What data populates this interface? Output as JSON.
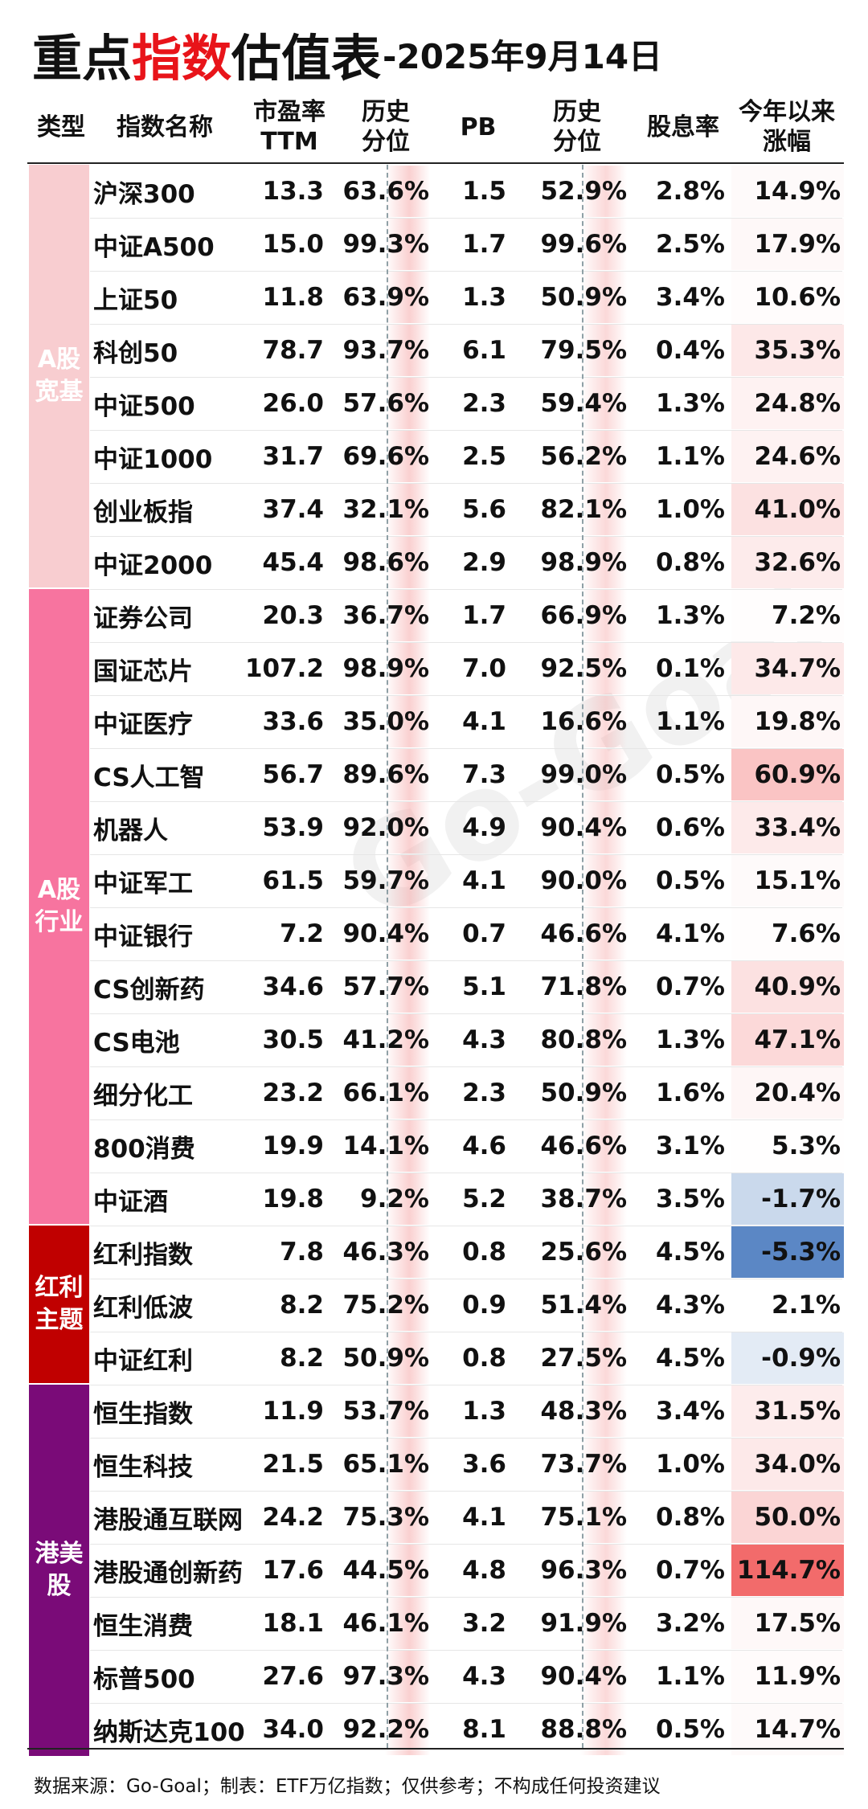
{
  "title": {
    "part1": "重点",
    "part2": "指数",
    "part3": "估值表",
    "part4": "-2025年9月14日"
  },
  "header": {
    "type": "类型",
    "name": "指数名称",
    "pe_l1": "市盈率",
    "pe_l2": "TTM",
    "pe_pct_l1": "历史",
    "pe_pct_l2": "分位",
    "pb": "PB",
    "pb_pct_l1": "历史",
    "pb_pct_l2": "分位",
    "div": "股息率",
    "ytd_l1": "今年以来",
    "ytd_l2": "涨幅"
  },
  "categories": [
    {
      "label_l1": "A股",
      "label_l2": "宽基",
      "color": "#f8cdd0",
      "rows": 8
    },
    {
      "label_l1": "A股",
      "label_l2": "行业",
      "color": "#f7749f",
      "rows": 12
    },
    {
      "label_l1": "红利",
      "label_l2": "主题",
      "color": "#c00000",
      "rows": 3
    },
    {
      "label_l1": "港美",
      "label_l2": "股",
      "color": "#7a0b78",
      "rows": 7
    }
  ],
  "rows": [
    {
      "name": "沪深300",
      "pe": "13.3",
      "pe_pct": "63.6%",
      "pb": "1.5",
      "pb_pct": "52.9%",
      "div": "2.8%",
      "ytd": "14.9%",
      "ytd_value": 14.9
    },
    {
      "name": "中证A500",
      "pe": "15.0",
      "pe_pct": "99.3%",
      "pb": "1.7",
      "pb_pct": "99.6%",
      "div": "2.5%",
      "ytd": "17.9%",
      "ytd_value": 17.9
    },
    {
      "name": "上证50",
      "pe": "11.8",
      "pe_pct": "63.9%",
      "pb": "1.3",
      "pb_pct": "50.9%",
      "div": "3.4%",
      "ytd": "10.6%",
      "ytd_value": 10.6
    },
    {
      "name": "科创50",
      "pe": "78.7",
      "pe_pct": "93.7%",
      "pb": "6.1",
      "pb_pct": "79.5%",
      "div": "0.4%",
      "ytd": "35.3%",
      "ytd_value": 35.3
    },
    {
      "name": "中证500",
      "pe": "26.0",
      "pe_pct": "57.6%",
      "pb": "2.3",
      "pb_pct": "59.4%",
      "div": "1.3%",
      "ytd": "24.8%",
      "ytd_value": 24.8
    },
    {
      "name": "中证1000",
      "pe": "31.7",
      "pe_pct": "69.6%",
      "pb": "2.5",
      "pb_pct": "56.2%",
      "div": "1.1%",
      "ytd": "24.6%",
      "ytd_value": 24.6
    },
    {
      "name": "创业板指",
      "pe": "37.4",
      "pe_pct": "32.1%",
      "pb": "5.6",
      "pb_pct": "82.1%",
      "div": "1.0%",
      "ytd": "41.0%",
      "ytd_value": 41.0
    },
    {
      "name": "中证2000",
      "pe": "45.4",
      "pe_pct": "98.6%",
      "pb": "2.9",
      "pb_pct": "98.9%",
      "div": "0.8%",
      "ytd": "32.6%",
      "ytd_value": 32.6
    },
    {
      "name": "证券公司",
      "pe": "20.3",
      "pe_pct": "36.7%",
      "pb": "1.7",
      "pb_pct": "66.9%",
      "div": "1.3%",
      "ytd": "7.2%",
      "ytd_value": 7.2
    },
    {
      "name": "国证芯片",
      "pe": "107.2",
      "pe_pct": "98.9%",
      "pb": "7.0",
      "pb_pct": "92.5%",
      "div": "0.1%",
      "ytd": "34.7%",
      "ytd_value": 34.7
    },
    {
      "name": "中证医疗",
      "pe": "33.6",
      "pe_pct": "35.0%",
      "pb": "4.1",
      "pb_pct": "16.6%",
      "div": "1.1%",
      "ytd": "19.8%",
      "ytd_value": 19.8
    },
    {
      "name": "CS人工智",
      "pe": "56.7",
      "pe_pct": "89.6%",
      "pb": "7.3",
      "pb_pct": "99.0%",
      "div": "0.5%",
      "ytd": "60.9%",
      "ytd_value": 60.9
    },
    {
      "name": "机器人",
      "pe": "53.9",
      "pe_pct": "92.0%",
      "pb": "4.9",
      "pb_pct": "90.4%",
      "div": "0.6%",
      "ytd": "33.4%",
      "ytd_value": 33.4
    },
    {
      "name": "中证军工",
      "pe": "61.5",
      "pe_pct": "59.7%",
      "pb": "4.1",
      "pb_pct": "90.0%",
      "div": "0.5%",
      "ytd": "15.1%",
      "ytd_value": 15.1
    },
    {
      "name": "中证银行",
      "pe": "7.2",
      "pe_pct": "90.4%",
      "pb": "0.7",
      "pb_pct": "46.6%",
      "div": "4.1%",
      "ytd": "7.6%",
      "ytd_value": 7.6
    },
    {
      "name": "CS创新药",
      "pe": "34.6",
      "pe_pct": "57.7%",
      "pb": "5.1",
      "pb_pct": "71.8%",
      "div": "0.7%",
      "ytd": "40.9%",
      "ytd_value": 40.9
    },
    {
      "name": "CS电池",
      "pe": "30.5",
      "pe_pct": "41.2%",
      "pb": "4.3",
      "pb_pct": "80.8%",
      "div": "1.3%",
      "ytd": "47.1%",
      "ytd_value": 47.1
    },
    {
      "name": "细分化工",
      "pe": "23.2",
      "pe_pct": "66.1%",
      "pb": "2.3",
      "pb_pct": "50.9%",
      "div": "1.6%",
      "ytd": "20.4%",
      "ytd_value": 20.4
    },
    {
      "name": "800消费",
      "pe": "19.9",
      "pe_pct": "14.1%",
      "pb": "4.6",
      "pb_pct": "46.6%",
      "div": "3.1%",
      "ytd": "5.3%",
      "ytd_value": 5.3
    },
    {
      "name": "中证酒",
      "pe": "19.8",
      "pe_pct": "9.2%",
      "pb": "5.2",
      "pb_pct": "38.7%",
      "div": "3.5%",
      "ytd": "-1.7%",
      "ytd_value": -1.7
    },
    {
      "name": "红利指数",
      "pe": "7.8",
      "pe_pct": "46.3%",
      "pb": "0.8",
      "pb_pct": "25.6%",
      "div": "4.5%",
      "ytd": "-5.3%",
      "ytd_value": -5.3
    },
    {
      "name": "红利低波",
      "pe": "8.2",
      "pe_pct": "75.2%",
      "pb": "0.9",
      "pb_pct": "51.4%",
      "div": "4.3%",
      "ytd": "2.1%",
      "ytd_value": 2.1
    },
    {
      "name": "中证红利",
      "pe": "8.2",
      "pe_pct": "50.9%",
      "pb": "0.8",
      "pb_pct": "27.5%",
      "div": "4.5%",
      "ytd": "-0.9%",
      "ytd_value": -0.9
    },
    {
      "name": "恒生指数",
      "pe": "11.9",
      "pe_pct": "53.7%",
      "pb": "1.3",
      "pb_pct": "48.3%",
      "div": "3.4%",
      "ytd": "31.5%",
      "ytd_value": 31.5
    },
    {
      "name": "恒生科技",
      "pe": "21.5",
      "pe_pct": "65.1%",
      "pb": "3.6",
      "pb_pct": "73.7%",
      "div": "1.0%",
      "ytd": "34.0%",
      "ytd_value": 34.0
    },
    {
      "name": "港股通互联网",
      "pe": "24.2",
      "pe_pct": "75.3%",
      "pb": "4.1",
      "pb_pct": "75.1%",
      "div": "0.8%",
      "ytd": "50.0%",
      "ytd_value": 50.0
    },
    {
      "name": "港股通创新药",
      "pe": "17.6",
      "pe_pct": "44.5%",
      "pb": "4.8",
      "pb_pct": "96.3%",
      "div": "0.7%",
      "ytd": "114.7%",
      "ytd_value": 114.7
    },
    {
      "name": "恒生消费",
      "pe": "18.1",
      "pe_pct": "46.1%",
      "pb": "3.2",
      "pb_pct": "91.9%",
      "div": "3.2%",
      "ytd": "17.5%",
      "ytd_value": 17.5
    },
    {
      "name": "标普500",
      "pe": "27.6",
      "pe_pct": "97.3%",
      "pb": "4.3",
      "pb_pct": "90.4%",
      "div": "1.1%",
      "ytd": "11.9%",
      "ytd_value": 11.9
    },
    {
      "name": "纳斯达克100",
      "pe": "34.0",
      "pe_pct": "92.2%",
      "pb": "8.1",
      "pb_pct": "88.8%",
      "div": "0.5%",
      "ytd": "14.7%",
      "ytd_value": 14.7
    }
  ],
  "colors": {
    "heat_pos_max": "#f26b6b",
    "heat_neg_max": "#5b87c5",
    "title_accent": "#e8141a"
  },
  "watermark": "Go-Goal",
  "footer": "数据来源：Go-Goal；制表：ETF万亿指数；仅供参考；不构成任何投资建议"
}
